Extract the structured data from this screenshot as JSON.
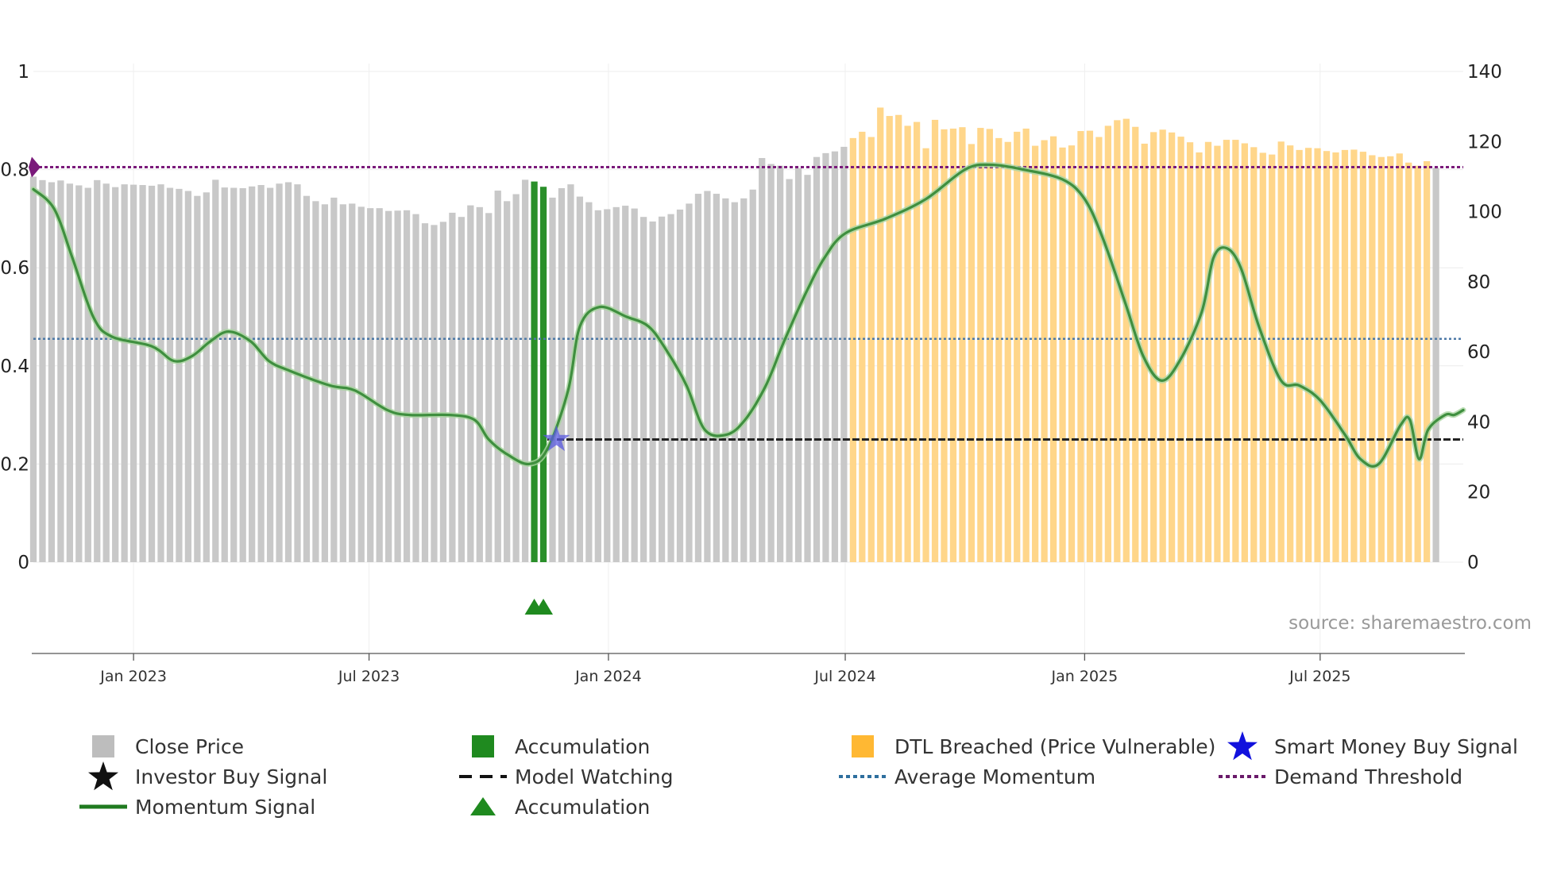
{
  "chart_data": {
    "type": "bar",
    "source_text": "source: sharemaestro.com",
    "left_axis": {
      "range": [
        0,
        1
      ],
      "ticks": [
        0,
        0.2,
        0.4,
        0.6,
        0.8,
        1
      ],
      "tick_labels": [
        "0",
        "0.2",
        "0.4",
        "0.6",
        "0.8",
        "1"
      ]
    },
    "right_axis": {
      "range": [
        0,
        140
      ],
      "ticks": [
        0,
        20,
        40,
        60,
        80,
        100,
        120,
        140
      ],
      "tick_labels": [
        "0",
        "20",
        "40",
        "60",
        "80",
        "100",
        "120",
        "140"
      ]
    },
    "x_axis": {
      "start": "2022-10-16",
      "end": "2025-10-19",
      "ticks": [
        {
          "date": "2023-01-01",
          "label": "Jan 2023"
        },
        {
          "date": "2023-07-01",
          "label": "Jul 2023"
        },
        {
          "date": "2024-01-01",
          "label": "Jan 2024"
        },
        {
          "date": "2024-07-01",
          "label": "Jul 2024"
        },
        {
          "date": "2025-01-01",
          "label": "Jan 2025"
        },
        {
          "date": "2025-07-01",
          "label": "Jul 2025"
        }
      ]
    },
    "series": [
      {
        "name": "Close Price",
        "type": "bar",
        "axis": "right",
        "frequency": "weekly",
        "start_date": "2022-10-16",
        "values": [
          110,
          109,
          108.4,
          108.9,
          108,
          107.5,
          106.8,
          109,
          108,
          107,
          107.8,
          107.7,
          107.6,
          107.4,
          107.8,
          106.8,
          106.5,
          105.9,
          104.5,
          105.5,
          109.1,
          106.9,
          106.8,
          106.7,
          107.2,
          107.6,
          106.8,
          108,
          108.4,
          107.8,
          104.5,
          103,
          102.1,
          104,
          102.1,
          102.3,
          101.4,
          101,
          101,
          100.2,
          100.3,
          100.4,
          99.3,
          96.7,
          96.2,
          97.1,
          99.7,
          98.5,
          101.8,
          101.3,
          99.6,
          106,
          103,
          105,
          109.1,
          108.6,
          107.1,
          104,
          106.7,
          107.8,
          104.3,
          102.7,
          100.4,
          100.7,
          101.3,
          101.7,
          100.9,
          98.5,
          97.2,
          98.6,
          99.3,
          100.6,
          102.3,
          105.1,
          105.9,
          105.1,
          103.8,
          102.7,
          103.8,
          106.3,
          115.3,
          113.6,
          113.1,
          109.3,
          112.4,
          110.5,
          115.6,
          116.7,
          117.2,
          118.5,
          121,
          122.8,
          121.3,
          129.7,
          127.3,
          127.6,
          124.5,
          125.6,
          118.1,
          126.2,
          123.5,
          123.7,
          124.1,
          119.3,
          123.9,
          123.6,
          121,
          119.9,
          122.8,
          123.7,
          118.8,
          120.4,
          121.5,
          118.3,
          118.9,
          123,
          123.1,
          121.3,
          124.5,
          126.1,
          126.5,
          124.2,
          119.4,
          122.7,
          123.4,
          122.6,
          121.4,
          119.8,
          116.9,
          119.9,
          118.8,
          120.5,
          120.5,
          119.5,
          118.4,
          116.8,
          116.3,
          120,
          118.9,
          117.6,
          118.2,
          118.1,
          117.3,
          116.9,
          117.6,
          117.7,
          117.1,
          116.1,
          115.6,
          115.8,
          116.6,
          114,
          113.1,
          114.4,
          112.5
        ],
        "color_gray": "#c8c8c8",
        "color_orange": "#ffd68a",
        "color_green": "#2a8f2a"
      },
      {
        "name": "Momentum Signal",
        "type": "line",
        "axis": "left",
        "color": "#3f8f3f",
        "points": [
          [
            "2022-10-16",
            0.76
          ],
          [
            "2022-11-01",
            0.72
          ],
          [
            "2022-11-15",
            0.62
          ],
          [
            "2022-12-01",
            0.5
          ],
          [
            "2022-12-15",
            0.46
          ],
          [
            "2023-01-15",
            0.44
          ],
          [
            "2023-02-01",
            0.41
          ],
          [
            "2023-02-15",
            0.42
          ],
          [
            "2023-03-01",
            0.45
          ],
          [
            "2023-03-15",
            0.47
          ],
          [
            "2023-04-01",
            0.45
          ],
          [
            "2023-04-15",
            0.41
          ],
          [
            "2023-05-01",
            0.39
          ],
          [
            "2023-06-01",
            0.36
          ],
          [
            "2023-06-20",
            0.35
          ],
          [
            "2023-07-15",
            0.31
          ],
          [
            "2023-08-01",
            0.3
          ],
          [
            "2023-09-01",
            0.3
          ],
          [
            "2023-09-20",
            0.29
          ],
          [
            "2023-10-01",
            0.25
          ],
          [
            "2023-10-15",
            0.22
          ],
          [
            "2023-11-01",
            0.2
          ],
          [
            "2023-11-15",
            0.23
          ],
          [
            "2023-12-01",
            0.35
          ],
          [
            "2023-12-10",
            0.48
          ],
          [
            "2023-12-25",
            0.52
          ],
          [
            "2024-01-15",
            0.5
          ],
          [
            "2024-02-01",
            0.48
          ],
          [
            "2024-02-15",
            0.43
          ],
          [
            "2024-03-01",
            0.36
          ],
          [
            "2024-03-15",
            0.27
          ],
          [
            "2024-04-01",
            0.26
          ],
          [
            "2024-04-15",
            0.29
          ],
          [
            "2024-05-01",
            0.36
          ],
          [
            "2024-05-15",
            0.45
          ],
          [
            "2024-06-01",
            0.55
          ],
          [
            "2024-06-15",
            0.62
          ],
          [
            "2024-07-01",
            0.67
          ],
          [
            "2024-08-01",
            0.7
          ],
          [
            "2024-09-01",
            0.74
          ],
          [
            "2024-10-01",
            0.8
          ],
          [
            "2024-10-20",
            0.81
          ],
          [
            "2024-11-15",
            0.8
          ],
          [
            "2024-12-15",
            0.78
          ],
          [
            "2025-01-01",
            0.74
          ],
          [
            "2025-01-15",
            0.66
          ],
          [
            "2025-02-01",
            0.53
          ],
          [
            "2025-02-15",
            0.42
          ],
          [
            "2025-03-01",
            0.37
          ],
          [
            "2025-03-15",
            0.41
          ],
          [
            "2025-04-01",
            0.51
          ],
          [
            "2025-04-10",
            0.62
          ],
          [
            "2025-04-20",
            0.64
          ],
          [
            "2025-05-01",
            0.6
          ],
          [
            "2025-05-15",
            0.48
          ],
          [
            "2025-06-01",
            0.37
          ],
          [
            "2025-06-15",
            0.36
          ],
          [
            "2025-07-01",
            0.33
          ],
          [
            "2025-07-20",
            0.26
          ],
          [
            "2025-08-01",
            0.21
          ],
          [
            "2025-08-15",
            0.2
          ],
          [
            "2025-09-01",
            0.28
          ],
          [
            "2025-09-08",
            0.29
          ],
          [
            "2025-09-15",
            0.21
          ],
          [
            "2025-09-22",
            0.27
          ],
          [
            "2025-10-05",
            0.3
          ],
          [
            "2025-10-12",
            0.3
          ],
          [
            "2025-10-19",
            0.31
          ]
        ]
      },
      {
        "name": "Average Momentum",
        "type": "hline",
        "axis": "left",
        "value": 0.455,
        "color": "#4d79a7"
      },
      {
        "name": "Demand Threshold",
        "type": "hline",
        "axis": "left",
        "value": 0.805,
        "color": "#7a1a7a"
      },
      {
        "name": "Model Watching",
        "type": "hline",
        "axis": "left",
        "value": 0.25,
        "start": "2023-11-15",
        "end": "2025-10-19",
        "color": "#222222"
      },
      {
        "name": "Smart Money Buy Signal",
        "type": "marker",
        "axis": "left",
        "date": "2023-11-22",
        "value": 0.25,
        "color": "#5a5ae0"
      },
      {
        "name": "Accumulation",
        "type": "marker",
        "dates": [
          "2023-11-05",
          "2023-11-12"
        ],
        "color": "#1f8a1f"
      }
    ],
    "accumulation_bar_dates": [
      "2023-11-05",
      "2023-11-12"
    ],
    "dtl_breached_range": [
      "2024-07-01",
      "2025-09-22"
    ],
    "legend": {
      "entries": [
        {
          "label": "Close Price",
          "symbol": "square",
          "color": "#bdbdbd"
        },
        {
          "label": "Accumulation",
          "symbol": "square",
          "color": "#1f8a1f"
        },
        {
          "label": "DTL Breached (Price Vulnerable)",
          "symbol": "square",
          "color": "#ffb833"
        },
        {
          "label": "Smart Money Buy Signal",
          "symbol": "star",
          "color": "#1111dd"
        },
        {
          "label": "Investor Buy Signal",
          "symbol": "star",
          "color": "#111111"
        },
        {
          "label": "Model Watching",
          "symbol": "dashed-line",
          "color": "#111111"
        },
        {
          "label": "Average Momentum",
          "symbol": "dotted-line",
          "color": "#2e6f9e"
        },
        {
          "label": "Demand Threshold",
          "symbol": "dotted-line",
          "color": "#6a1a6a"
        },
        {
          "label": "Momentum Signal",
          "symbol": "line",
          "color": "#1f7a1f"
        },
        {
          "label": "Accumulation",
          "symbol": "triangle",
          "color": "#1f8a1f"
        }
      ]
    }
  }
}
